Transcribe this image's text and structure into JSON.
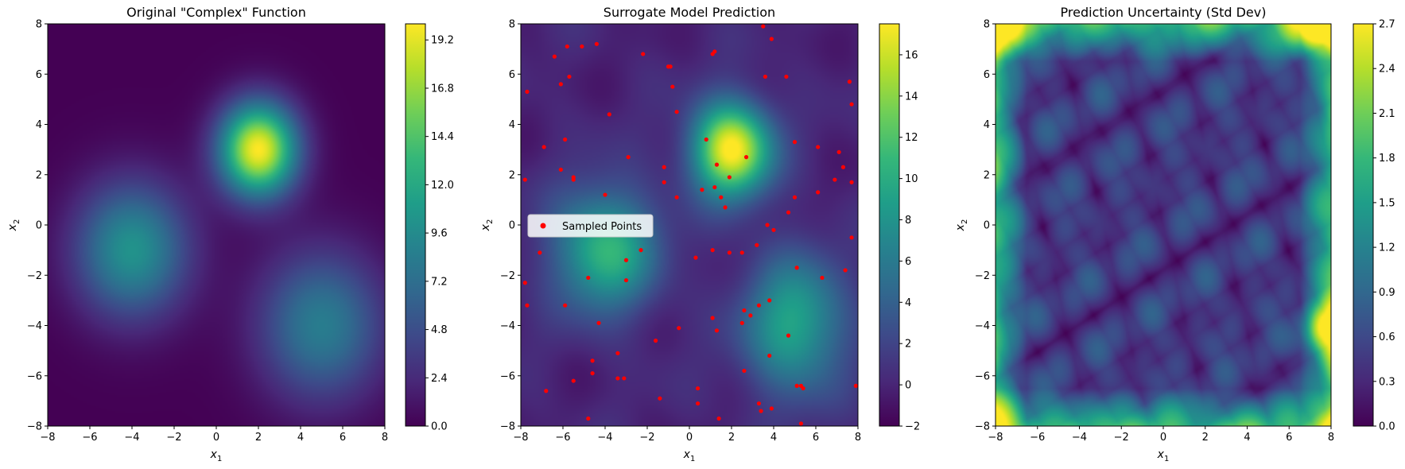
{
  "chart_data": [
    {
      "type": "heatmap",
      "title": "Original \"Complex\" Function",
      "xlabel": "x1",
      "ylabel": "x2",
      "xlim": [
        -8,
        8
      ],
      "ylim": [
        -8,
        8
      ],
      "xticks": [
        "−8",
        "−6",
        "−4",
        "−2",
        "0",
        "2",
        "4",
        "6",
        "8"
      ],
      "yticks": [
        "−8",
        "−6",
        "−4",
        "−2",
        "0",
        "2",
        "4",
        "6",
        "8"
      ],
      "colorbar": {
        "range": [
          0,
          20
        ],
        "ticks": [
          "0.0",
          "2.4",
          "4.8",
          "7.2",
          "9.6",
          "12.0",
          "14.4",
          "16.8",
          "19.2"
        ],
        "tick_values": [
          0,
          2.4,
          4.8,
          7.2,
          9.6,
          12.0,
          14.4,
          16.8,
          19.2
        ],
        "colormap": "viridis"
      },
      "peaks": [
        {
          "x": 2,
          "y": 3,
          "amplitude": 20,
          "sigma_x": 1.3,
          "sigma_y": 1.3
        },
        {
          "x": -4,
          "y": -1,
          "amplitude": 10.2,
          "sigma_x": 1.9,
          "sigma_y": 1.9
        },
        {
          "x": 5,
          "y": -4,
          "amplitude": 8.4,
          "sigma_x": 2.1,
          "sigma_y": 2.1
        }
      ]
    },
    {
      "type": "heatmap",
      "title": "Surrogate Model Prediction",
      "xlabel": "x1",
      "ylabel": "x2",
      "xlim": [
        -8,
        8
      ],
      "ylim": [
        -8,
        8
      ],
      "xticks": [
        "−8",
        "−6",
        "−4",
        "−2",
        "0",
        "2",
        "4",
        "6",
        "8"
      ],
      "yticks": [
        "−8",
        "−6",
        "−4",
        "−2",
        "0",
        "2",
        "4",
        "6",
        "8"
      ],
      "colorbar": {
        "range": [
          -2,
          17.5
        ],
        "ticks": [
          "−2",
          "0",
          "2",
          "4",
          "6",
          "8",
          "10",
          "12",
          "14",
          "16"
        ],
        "tick_values": [
          -2,
          0,
          2,
          4,
          6,
          8,
          10,
          12,
          14,
          16
        ],
        "colormap": "viridis"
      },
      "peaks": [
        {
          "x": 2,
          "y": 3,
          "amplitude": 18,
          "sigma_x": 1.3,
          "sigma_y": 1.3
        },
        {
          "x": -4,
          "y": -1,
          "amplitude": 10.8,
          "sigma_x": 1.7,
          "sigma_y": 1.7
        },
        {
          "x": 5,
          "y": -4,
          "amplitude": 9.5,
          "sigma_x": 1.7,
          "sigma_y": 1.9
        }
      ],
      "legend": {
        "label": "Sampled Points",
        "placement": "center-left"
      },
      "series": [
        {
          "name": "Sampled Points",
          "color": "#ff0000",
          "points": [
            [
              -7.7,
              5.3
            ],
            [
              -7.8,
              1.8
            ],
            [
              -7.8,
              -2.3
            ],
            [
              -7.7,
              -3.2
            ],
            [
              -7.1,
              -1.1
            ],
            [
              -6.9,
              3.1
            ],
            [
              -6.8,
              -6.6
            ],
            [
              -6.4,
              6.7
            ],
            [
              -6.1,
              5.6
            ],
            [
              -6.1,
              2.2
            ],
            [
              -5.9,
              3.4
            ],
            [
              -5.9,
              -3.2
            ],
            [
              -5.8,
              7.1
            ],
            [
              -5.7,
              5.9
            ],
            [
              -5.5,
              1.8
            ],
            [
              -5.5,
              1.9
            ],
            [
              -5.5,
              -6.2
            ],
            [
              -5.1,
              7.1
            ],
            [
              -4.8,
              -2.1
            ],
            [
              -4.8,
              -7.7
            ],
            [
              -4.6,
              -5.4
            ],
            [
              -4.6,
              -5.9
            ],
            [
              -4.4,
              7.2
            ],
            [
              -4.3,
              -3.9
            ],
            [
              -4.0,
              1.2
            ],
            [
              -3.8,
              4.4
            ],
            [
              -3.4,
              -5.1
            ],
            [
              -3.4,
              -6.1
            ],
            [
              -3.1,
              -6.1
            ],
            [
              -3.0,
              -1.4
            ],
            [
              -3.0,
              -2.2
            ],
            [
              -2.9,
              2.7
            ],
            [
              -2.3,
              -1.0
            ],
            [
              -2.2,
              6.8
            ],
            [
              -1.6,
              -4.6
            ],
            [
              -1.4,
              -6.9
            ],
            [
              -1.2,
              2.3
            ],
            [
              -1.2,
              1.7
            ],
            [
              -1.0,
              6.3
            ],
            [
              -0.9,
              6.3
            ],
            [
              -0.8,
              5.5
            ],
            [
              -0.6,
              4.5
            ],
            [
              -0.6,
              1.1
            ],
            [
              -0.5,
              -4.1
            ],
            [
              0.3,
              -1.3
            ],
            [
              0.4,
              -6.5
            ],
            [
              0.4,
              -7.1
            ],
            [
              0.6,
              1.4
            ],
            [
              0.8,
              3.4
            ],
            [
              1.1,
              6.8
            ],
            [
              1.2,
              6.9
            ],
            [
              1.1,
              -1.0
            ],
            [
              1.1,
              -3.7
            ],
            [
              1.2,
              1.5
            ],
            [
              1.3,
              2.4
            ],
            [
              1.3,
              -4.2
            ],
            [
              1.4,
              -7.7
            ],
            [
              1.5,
              1.1
            ],
            [
              1.7,
              0.7
            ],
            [
              1.9,
              1.9
            ],
            [
              1.9,
              -1.1
            ],
            [
              2.5,
              -1.1
            ],
            [
              2.5,
              -3.9
            ],
            [
              2.6,
              -5.8
            ],
            [
              2.6,
              -3.4
            ],
            [
              2.7,
              2.7
            ],
            [
              2.9,
              -3.6
            ],
            [
              3.2,
              -0.8
            ],
            [
              3.3,
              -3.2
            ],
            [
              3.3,
              -7.1
            ],
            [
              3.4,
              -7.4
            ],
            [
              3.5,
              7.9
            ],
            [
              3.6,
              5.9
            ],
            [
              3.7,
              0.0
            ],
            [
              3.8,
              -3.0
            ],
            [
              3.8,
              -5.2
            ],
            [
              3.9,
              7.4
            ],
            [
              3.9,
              -7.3
            ],
            [
              4.0,
              -0.2
            ],
            [
              4.6,
              5.9
            ],
            [
              4.7,
              0.5
            ],
            [
              4.7,
              -4.4
            ],
            [
              5.0,
              3.3
            ],
            [
              5.0,
              1.1
            ],
            [
              5.1,
              -1.7
            ],
            [
              5.1,
              -6.4
            ],
            [
              5.3,
              -6.4
            ],
            [
              5.3,
              -7.9
            ],
            [
              5.4,
              -6.5
            ],
            [
              6.1,
              3.1
            ],
            [
              6.1,
              1.3
            ],
            [
              6.3,
              -2.1
            ],
            [
              6.9,
              1.8
            ],
            [
              7.1,
              2.9
            ],
            [
              7.3,
              2.3
            ],
            [
              7.4,
              -1.8
            ],
            [
              7.6,
              5.7
            ],
            [
              7.7,
              4.8
            ],
            [
              7.7,
              1.7
            ],
            [
              7.7,
              -0.5
            ],
            [
              7.9,
              -6.4
            ]
          ]
        }
      ]
    },
    {
      "type": "heatmap",
      "title": "Prediction Uncertainty (Std Dev)",
      "xlabel": "x1",
      "ylabel": "x2",
      "xlim": [
        -8,
        8
      ],
      "ylim": [
        -8,
        8
      ],
      "xticks": [
        "−8",
        "−6",
        "−4",
        "−2",
        "0",
        "2",
        "4",
        "6",
        "8"
      ],
      "yticks": [
        "−8",
        "−6",
        "−4",
        "−2",
        "0",
        "2",
        "4",
        "6",
        "8"
      ],
      "colorbar": {
        "range": [
          0,
          2.7
        ],
        "ticks": [
          "0.0",
          "0.3",
          "0.6",
          "0.9",
          "1.2",
          "1.5",
          "1.8",
          "2.1",
          "2.4",
          "2.7"
        ],
        "tick_values": [
          0,
          0.3,
          0.6,
          0.9,
          1.2,
          1.5,
          1.8,
          2.1,
          2.4,
          2.7
        ],
        "colormap": "viridis"
      }
    }
  ],
  "colors": {
    "viridis": [
      "#440154",
      "#482878",
      "#3e4989",
      "#31688e",
      "#26828e",
      "#1f9e89",
      "#35b779",
      "#6ece58",
      "#b5de2b",
      "#fde725"
    ],
    "sample_points": "#ff0000"
  }
}
